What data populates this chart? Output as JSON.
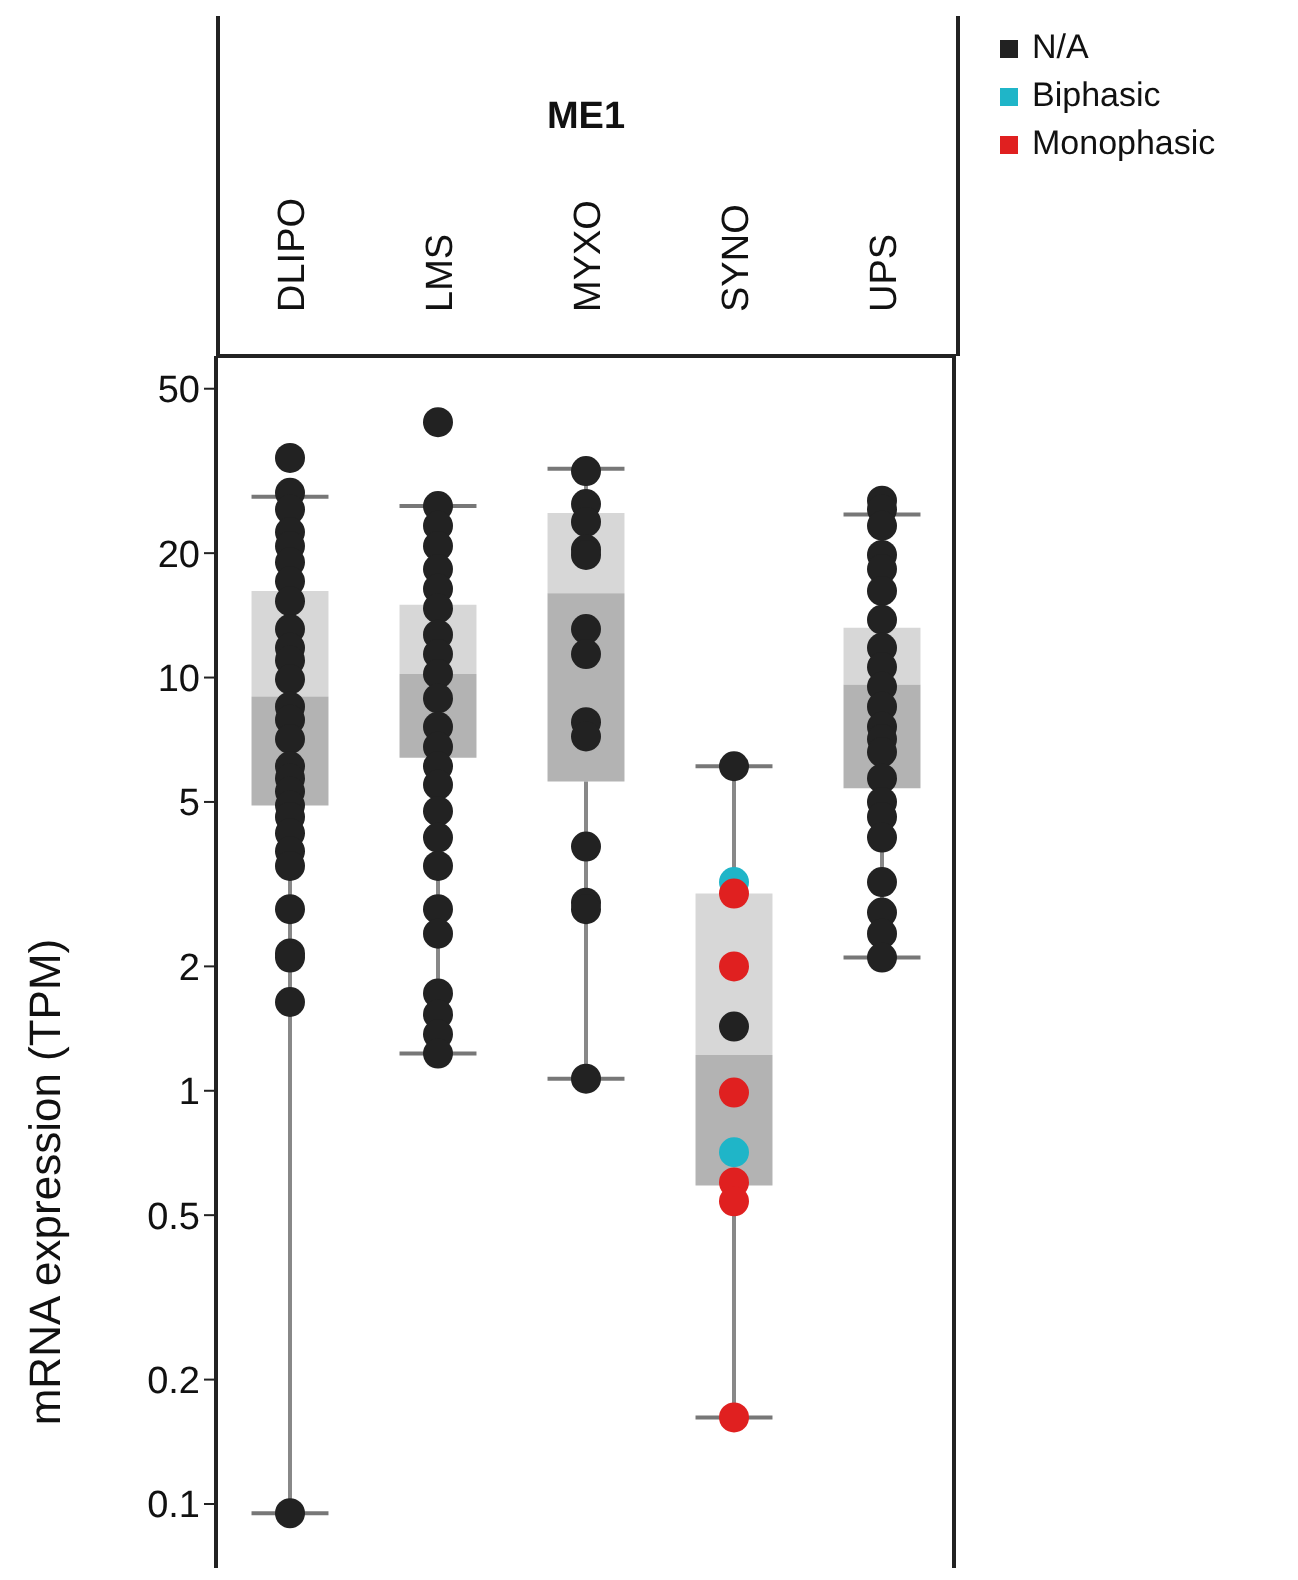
{
  "chart_data": {
    "type": "box",
    "title": "ME1",
    "ylabel": "mRNA expression (TPM)",
    "categories": [
      "DLIPO",
      "LMS",
      "MYXO",
      "SYNO",
      "UPS"
    ],
    "color": "#a6a6a6",
    "boxes": [
      {
        "low": 0.095,
        "q1": 4.9,
        "median": 9,
        "q3": 16.2,
        "high": 27.4
      },
      {
        "low": 1.23,
        "q1": 6.4,
        "median": 10.2,
        "q3": 15,
        "high": 26
      },
      {
        "low": 1.07,
        "q1": 5.6,
        "median": 16,
        "q3": 25,
        "high": 32
      },
      {
        "low": 0.162,
        "q1": 0.59,
        "median": 1.22,
        "q3": 3.0,
        "high": 6.1
      },
      {
        "low": 2.1,
        "q1": 5.4,
        "median": 9.6,
        "q3": 13.2,
        "high": 24.8
      }
    ],
    "series": [
      {
        "name": "N/A",
        "type": "scatter",
        "color": "#222222",
        "x": [
          "DLIPO",
          "DLIPO",
          "DLIPO",
          "DLIPO",
          "DLIPO",
          "DLIPO",
          "DLIPO",
          "DLIPO",
          "DLIPO",
          "DLIPO",
          "DLIPO",
          "DLIPO",
          "DLIPO",
          "DLIPO",
          "DLIPO",
          "DLIPO",
          "DLIPO",
          "DLIPO",
          "DLIPO",
          "DLIPO",
          "DLIPO",
          "DLIPO",
          "DLIPO",
          "DLIPO",
          "DLIPO",
          "DLIPO",
          "DLIPO",
          "DLIPO",
          "LMS",
          "LMS",
          "LMS",
          "LMS",
          "LMS",
          "LMS",
          "LMS",
          "LMS",
          "LMS",
          "LMS",
          "LMS",
          "LMS",
          "LMS",
          "LMS",
          "LMS",
          "LMS",
          "LMS",
          "LMS",
          "LMS",
          "LMS",
          "LMS",
          "LMS",
          "LMS",
          "LMS",
          "MYXO",
          "MYXO",
          "MYXO",
          "MYXO",
          "MYXO",
          "MYXO",
          "MYXO",
          "MYXO",
          "MYXO",
          "MYXO",
          "MYXO",
          "MYXO",
          "MYXO",
          "SYNO",
          "SYNO",
          "UPS",
          "UPS",
          "UPS",
          "UPS",
          "UPS",
          "UPS",
          "UPS",
          "UPS",
          "UPS",
          "UPS",
          "UPS",
          "UPS",
          "UPS",
          "UPS",
          "UPS",
          "UPS",
          "UPS",
          "UPS",
          "UPS",
          "UPS",
          "UPS",
          "UPS"
        ],
        "values": [
          34,
          28,
          25.5,
          22.5,
          20.8,
          19,
          17.1,
          15.3,
          13.1,
          11.8,
          11,
          9.9,
          8.5,
          7.9,
          7.1,
          6.1,
          5.7,
          5.3,
          4.9,
          4.6,
          4.2,
          3.8,
          3.5,
          2.75,
          2.15,
          2.1,
          1.64,
          0.095,
          41.5,
          26,
          23.3,
          20.8,
          18.3,
          16.4,
          14.7,
          12.7,
          11.4,
          10.2,
          8.9,
          7.6,
          6.8,
          6.1,
          5.5,
          4.75,
          4.1,
          3.5,
          2.75,
          2.4,
          1.72,
          1.53,
          1.37,
          1.23,
          31.6,
          26.3,
          23.8,
          20.4,
          19.8,
          13.1,
          11.4,
          7.8,
          7.2,
          3.9,
          2.85,
          2.75,
          1.07,
          6.1,
          1.43,
          26.8,
          25.5,
          23.3,
          19.8,
          18.3,
          16.2,
          13.8,
          11.8,
          10.6,
          9.5,
          8.5,
          7.6,
          7.1,
          6.6,
          5.7,
          5,
          4.6,
          4.1,
          3.2,
          2.7,
          2.4,
          2.1
        ]
      },
      {
        "name": "Biphasic",
        "type": "scatter",
        "color": "#1fb5c8",
        "x": [
          "SYNO",
          "SYNO"
        ],
        "values": [
          3.2,
          0.71
        ]
      },
      {
        "name": "Monophasic",
        "type": "scatter",
        "color": "#e02020",
        "x": [
          "SYNO",
          "SYNO",
          "SYNO",
          "SYNO",
          "SYNO",
          "SYNO"
        ],
        "values": [
          3.0,
          2.0,
          0.99,
          0.6,
          0.54,
          0.162
        ]
      }
    ],
    "log": "y",
    "ylim": [
      0.07,
      60
    ],
    "yticks": [
      0.1,
      0.2,
      0.5,
      1,
      2,
      5,
      10,
      20,
      50
    ],
    "legend": "top right",
    "marker": "circle"
  }
}
